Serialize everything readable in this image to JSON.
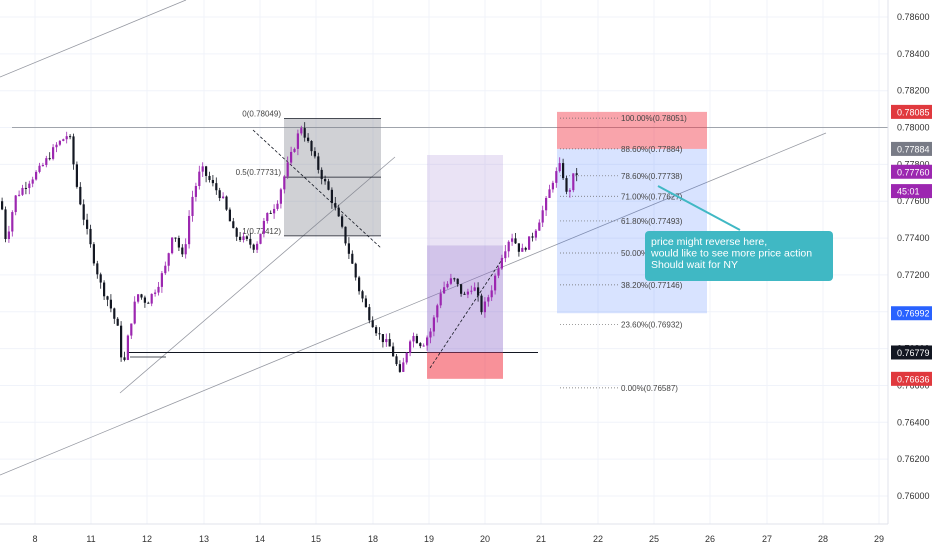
{
  "chart_data": {
    "type": "candlestick",
    "ylim": [
      0.76,
      0.788
    ],
    "x_ticks": [
      "8",
      "11",
      "12",
      "13",
      "14",
      "15",
      "18",
      "19",
      "20",
      "21",
      "22",
      "25",
      "26",
      "27",
      "28",
      "29"
    ],
    "y_ticks": [
      "0.78600",
      "0.78400",
      "0.78200",
      "0.78000",
      "0.77800",
      "0.77600",
      "0.77400",
      "0.77200",
      "0.77000",
      "0.76800",
      "0.76600",
      "0.76400",
      "0.76200",
      "0.76000"
    ],
    "price_tags": [
      {
        "label": "0.78085",
        "value": 0.78085,
        "color": "#e0393e",
        "text_color": "#ffffff"
      },
      {
        "label": "0.77884",
        "value": 0.77884,
        "color": "#787b86",
        "text_color": "#ffffff"
      },
      {
        "label": "0.77760",
        "value": 0.7776,
        "color": "#9c27b0",
        "text_color": "#ffffff"
      },
      {
        "label": "45:01",
        "value": 0.77655,
        "color": "#9c27b0",
        "text_color": "#ffffff"
      },
      {
        "label": "0.76992",
        "value": 0.76992,
        "color": "#2962ff",
        "text_color": "#ffffff"
      },
      {
        "label": "0.76779",
        "value": 0.76779,
        "color": "#131722",
        "text_color": "#ffffff"
      },
      {
        "label": "0.76636",
        "value": 0.76636,
        "color": "#e0393e",
        "text_color": "#ffffff"
      }
    ],
    "fib_right": [
      {
        "label": "100.00%(0.78051)",
        "value": 0.78051
      },
      {
        "label": "88.60%(0.77884)",
        "value": 0.77884
      },
      {
        "label": "78.60%(0.77738)",
        "value": 0.77738
      },
      {
        "label": "71.00%(0.77627)",
        "value": 0.77627
      },
      {
        "label": "61.80%(0.77493)",
        "value": 0.77493
      },
      {
        "label": "50.00%",
        "value": 0.77319
      },
      {
        "label": "38.20%(0.77146)",
        "value": 0.77146
      },
      {
        "label": "23.60%(0.76932)",
        "value": 0.76932
      },
      {
        "label": "0.00%(0.76587)",
        "value": 0.76587
      }
    ],
    "fib_left": [
      {
        "label": "0(0.78049)",
        "value": 0.78049
      },
      {
        "label": "0.5(0.77731)",
        "value": 0.77731
      },
      {
        "label": "1(0.77412)",
        "value": 0.77412
      }
    ],
    "callout": {
      "lines": [
        "price might reverse here,",
        " would like to see more price action",
        "Should wait for NY"
      ],
      "bg": "#40b8c4"
    },
    "colors": {
      "bull": "#9c27b0",
      "bear": "#131722",
      "grid": "#f0f3fa"
    }
  }
}
